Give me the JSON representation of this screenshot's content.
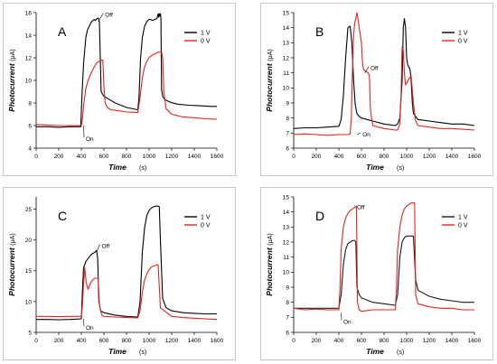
{
  "chart_data": [
    {
      "panel": "A",
      "type": "line",
      "xlabel": "Time",
      "xunit": "(s)",
      "ylabel": "Photocurrent",
      "yunit": "(μA)",
      "xlim": [
        0,
        1600
      ],
      "ylim": [
        4,
        16
      ],
      "xticks": [
        0,
        200,
        400,
        600,
        800,
        1000,
        1200,
        1400,
        1600
      ],
      "yticks": [
        4,
        6,
        8,
        10,
        12,
        14,
        16
      ],
      "legend": "top-right",
      "annotations": [
        {
          "text": "Off",
          "x": 550,
          "y": 15.2,
          "tx": 610,
          "ty": 15.8
        },
        {
          "text": "On",
          "x": 420,
          "y": 6.0,
          "tx": 440,
          "ty": 4.8
        }
      ],
      "series": [
        {
          "name": "1 V",
          "color": "#000000",
          "x": [
            0,
            100,
            200,
            300,
            395,
            405,
            420,
            440,
            455,
            470,
            490,
            505,
            515,
            525,
            540,
            550,
            560,
            575,
            600,
            650,
            700,
            800,
            900,
            910,
            925,
            940,
            960,
            980,
            1000,
            1010,
            1030,
            1050,
            1070,
            1080,
            1085,
            1090,
            1095,
            1100,
            1105,
            1110,
            1120,
            1140,
            1180,
            1250,
            1350,
            1450,
            1550,
            1600
          ],
          "y": [
            5.9,
            5.9,
            5.85,
            5.9,
            5.9,
            8.5,
            11.5,
            13.8,
            14.5,
            14.8,
            15.2,
            15.3,
            15.4,
            15.3,
            15.5,
            15.5,
            15.2,
            9.0,
            8.6,
            8.3,
            8.0,
            7.6,
            7.4,
            8.5,
            12.0,
            13.8,
            14.8,
            15.2,
            15.4,
            15.4,
            15.3,
            15.4,
            15.5,
            15.9,
            15.6,
            15.9,
            15.7,
            15.9,
            15.5,
            9.2,
            8.6,
            8.3,
            8.1,
            7.9,
            7.8,
            7.75,
            7.7,
            7.7
          ]
        },
        {
          "name": "0 V",
          "color": "#e8231f",
          "x": [
            0,
            100,
            200,
            300,
            400,
            410,
            420,
            440,
            460,
            480,
            500,
            520,
            540,
            560,
            580,
            590,
            600,
            610,
            630,
            660,
            700,
            800,
            900,
            920,
            940,
            960,
            980,
            1000,
            1020,
            1040,
            1060,
            1080,
            1100,
            1110,
            1120,
            1130,
            1150,
            1200,
            1300,
            1400,
            1500,
            1600
          ],
          "y": [
            6.1,
            6.05,
            6.0,
            6.0,
            6.0,
            6.6,
            7.8,
            9.3,
            10.0,
            10.5,
            10.9,
            11.3,
            11.6,
            11.7,
            11.8,
            11.8,
            9.5,
            8.0,
            7.6,
            7.4,
            7.35,
            7.2,
            7.15,
            8.5,
            10.2,
            11.2,
            11.7,
            12.0,
            12.2,
            12.3,
            12.4,
            12.5,
            12.5,
            12.5,
            12.0,
            9.0,
            7.5,
            7.0,
            6.75,
            6.7,
            6.6,
            6.55
          ]
        }
      ]
    },
    {
      "panel": "B",
      "type": "line",
      "xlabel": "Time",
      "xunit": "(s)",
      "ylabel": "Photocurrent",
      "yunit": "(μA)",
      "xlim": [
        0,
        1600
      ],
      "ylim": [
        6,
        15
      ],
      "xticks": [
        0,
        200,
        400,
        600,
        800,
        1000,
        1200,
        1400,
        1600
      ],
      "yticks": [
        6,
        7,
        8,
        9,
        10,
        11,
        12,
        13,
        14,
        15
      ],
      "legend": "top-right",
      "annotations": [
        {
          "text": "Off",
          "x": 630,
          "y": 11.0,
          "tx": 680,
          "ty": 11.3
        },
        {
          "text": "On",
          "x": 560,
          "y": 6.9,
          "tx": 610,
          "ty": 6.9
        }
      ],
      "series": [
        {
          "name": "1 V",
          "color": "#000000",
          "x": [
            0,
            100,
            200,
            300,
            400,
            420,
            440,
            460,
            480,
            500,
            515,
            530,
            545,
            560,
            580,
            600,
            650,
            700,
            800,
            900,
            920,
            940,
            960,
            970,
            980,
            990,
            1000,
            1010,
            1020,
            1030,
            1040,
            1050,
            1060,
            1080,
            1100,
            1200,
            1300,
            1400,
            1500,
            1600
          ],
          "y": [
            7.3,
            7.35,
            7.35,
            7.4,
            7.45,
            7.9,
            9.5,
            12.0,
            14.0,
            14.1,
            13.0,
            10.5,
            8.9,
            8.3,
            8.1,
            8.0,
            7.9,
            7.8,
            7.6,
            7.5,
            7.6,
            8.0,
            10.5,
            14.0,
            14.6,
            14.0,
            12.0,
            11.5,
            11.4,
            11.2,
            10.5,
            9.0,
            8.3,
            8.1,
            7.9,
            7.8,
            7.7,
            7.6,
            7.6,
            7.5
          ]
        },
        {
          "name": "0 V",
          "color": "#e8231f",
          "x": [
            0,
            100,
            200,
            300,
            400,
            450,
            480,
            500,
            510,
            520,
            530,
            540,
            550,
            560,
            570,
            580,
            600,
            610,
            620,
            640,
            660,
            670,
            680,
            700,
            800,
            900,
            920,
            940,
            950,
            960,
            970,
            980,
            990,
            1000,
            1020,
            1040,
            1060,
            1080,
            1100,
            1200,
            1300,
            1400,
            1600
          ],
          "y": [
            6.9,
            6.95,
            6.9,
            6.85,
            6.9,
            6.9,
            6.9,
            6.95,
            8.0,
            11.0,
            13.5,
            14.3,
            14.6,
            15.0,
            14.5,
            14.0,
            13.0,
            11.5,
            11.2,
            11.1,
            11.0,
            10.8,
            8.5,
            7.5,
            7.3,
            7.2,
            7.2,
            7.6,
            9.5,
            12.7,
            12.5,
            11.0,
            10.2,
            10.3,
            10.6,
            10.8,
            9.0,
            7.8,
            7.5,
            7.4,
            7.3,
            7.3,
            7.2
          ]
        }
      ]
    },
    {
      "panel": "C",
      "type": "line",
      "xlabel": "Time",
      "xunit": "(s)",
      "ylabel": "Photocurrent",
      "yunit": "(μA)",
      "xlim": [
        0,
        1600
      ],
      "ylim": [
        5,
        27
      ],
      "xticks": [
        0,
        200,
        400,
        600,
        800,
        1000,
        1200,
        1400,
        1600
      ],
      "yticks": [
        5,
        10,
        15,
        20,
        25
      ],
      "legend": "top-right",
      "annotations": [
        {
          "text": "Off",
          "x": 540,
          "y": 18.3,
          "tx": 580,
          "ty": 19.0
        },
        {
          "text": "On",
          "x": 420,
          "y": 7.2,
          "tx": 440,
          "ty": 5.7
        }
      ],
      "series": [
        {
          "name": "1 V",
          "color": "#000000",
          "x": [
            0,
            100,
            200,
            300,
            400,
            410,
            420,
            440,
            460,
            480,
            500,
            520,
            535,
            545,
            555,
            570,
            600,
            700,
            800,
            900,
            920,
            940,
            960,
            980,
            1000,
            1020,
            1040,
            1060,
            1080,
            1090,
            1100,
            1120,
            1150,
            1200,
            1300,
            1400,
            1500,
            1600
          ],
          "y": [
            7.1,
            7.1,
            7.05,
            7.1,
            7.2,
            12.0,
            15.5,
            16.5,
            17.0,
            17.5,
            17.8,
            18.0,
            18.3,
            17.0,
            10.0,
            8.5,
            8.2,
            7.8,
            7.6,
            7.5,
            10.0,
            18.0,
            22.0,
            24.0,
            24.8,
            25.2,
            25.4,
            25.5,
            25.5,
            25.4,
            20.0,
            10.5,
            9.0,
            8.5,
            8.2,
            8.1,
            8.0,
            8.0
          ]
        },
        {
          "name": "0 V",
          "color": "#e8231f",
          "x": [
            0,
            100,
            200,
            300,
            400,
            410,
            420,
            430,
            440,
            450,
            460,
            480,
            500,
            520,
            540,
            550,
            560,
            580,
            600,
            700,
            800,
            900,
            920,
            940,
            960,
            980,
            1000,
            1020,
            1040,
            1060,
            1080,
            1100,
            1200,
            1300,
            1400,
            1500,
            1600
          ],
          "y": [
            7.6,
            7.6,
            7.55,
            7.6,
            7.6,
            9.5,
            13.0,
            15.5,
            13.5,
            12.5,
            12.0,
            13.0,
            13.5,
            13.8,
            13.8,
            13.8,
            9.5,
            7.8,
            7.6,
            7.5,
            7.4,
            7.35,
            8.5,
            11.5,
            13.5,
            14.5,
            15.2,
            15.6,
            15.8,
            15.9,
            16.0,
            9.0,
            7.6,
            7.4,
            7.3,
            7.2,
            7.1
          ]
        }
      ]
    },
    {
      "panel": "D",
      "type": "line",
      "xlabel": "Time",
      "xunit": "(s)",
      "ylabel": "Photocurrent",
      "yunit": "(μA)",
      "xlim": [
        0,
        1600
      ],
      "ylim": [
        6,
        15
      ],
      "xticks": [
        0,
        200,
        400,
        600,
        800,
        1000,
        1200,
        1400,
        1600
      ],
      "yticks": [
        6,
        7,
        8,
        9,
        10,
        11,
        12,
        13,
        14,
        15
      ],
      "legend": "top-right",
      "annotations": [
        {
          "text": "Off",
          "x": 540,
          "y": 14.4,
          "tx": 560,
          "ty": 14.3
        },
        {
          "text": "On",
          "x": 420,
          "y": 7.3,
          "tx": 440,
          "ty": 6.7
        }
      ],
      "series": [
        {
          "name": "1 V",
          "color": "#1a1a1a",
          "x": [
            0,
            100,
            200,
            300,
            400,
            420,
            440,
            460,
            480,
            500,
            520,
            540,
            550,
            560,
            580,
            600,
            700,
            800,
            900,
            920,
            940,
            960,
            980,
            1000,
            1020,
            1040,
            1060,
            1080,
            1100,
            1200,
            1300,
            1400,
            1500,
            1600
          ],
          "y": [
            7.6,
            7.6,
            7.6,
            7.6,
            7.6,
            8.5,
            10.5,
            11.5,
            11.9,
            12.0,
            12.1,
            12.1,
            12.0,
            9.0,
            8.5,
            8.3,
            8.0,
            7.9,
            7.8,
            8.5,
            11.0,
            12.0,
            12.3,
            12.4,
            12.4,
            12.4,
            12.4,
            9.5,
            8.8,
            8.4,
            8.2,
            8.1,
            8.0,
            8.0
          ]
        },
        {
          "name": "0 V",
          "color": "#e8231f",
          "x": [
            0,
            100,
            200,
            300,
            400,
            410,
            420,
            440,
            460,
            480,
            500,
            520,
            540,
            555,
            565,
            580,
            600,
            700,
            800,
            900,
            910,
            920,
            940,
            960,
            980,
            1000,
            1020,
            1040,
            1060,
            1070,
            1080,
            1100,
            1200,
            1300,
            1400,
            1500,
            1600
          ],
          "y": [
            7.6,
            7.5,
            7.55,
            7.5,
            7.5,
            9.0,
            11.5,
            13.0,
            13.6,
            13.9,
            14.1,
            14.2,
            14.3,
            14.4,
            8.0,
            7.5,
            7.4,
            7.5,
            7.5,
            7.5,
            9.0,
            11.5,
            13.0,
            13.8,
            14.2,
            14.4,
            14.5,
            14.6,
            14.6,
            14.6,
            8.5,
            7.9,
            7.7,
            7.6,
            7.6,
            7.5,
            7.5
          ]
        }
      ]
    }
  ]
}
